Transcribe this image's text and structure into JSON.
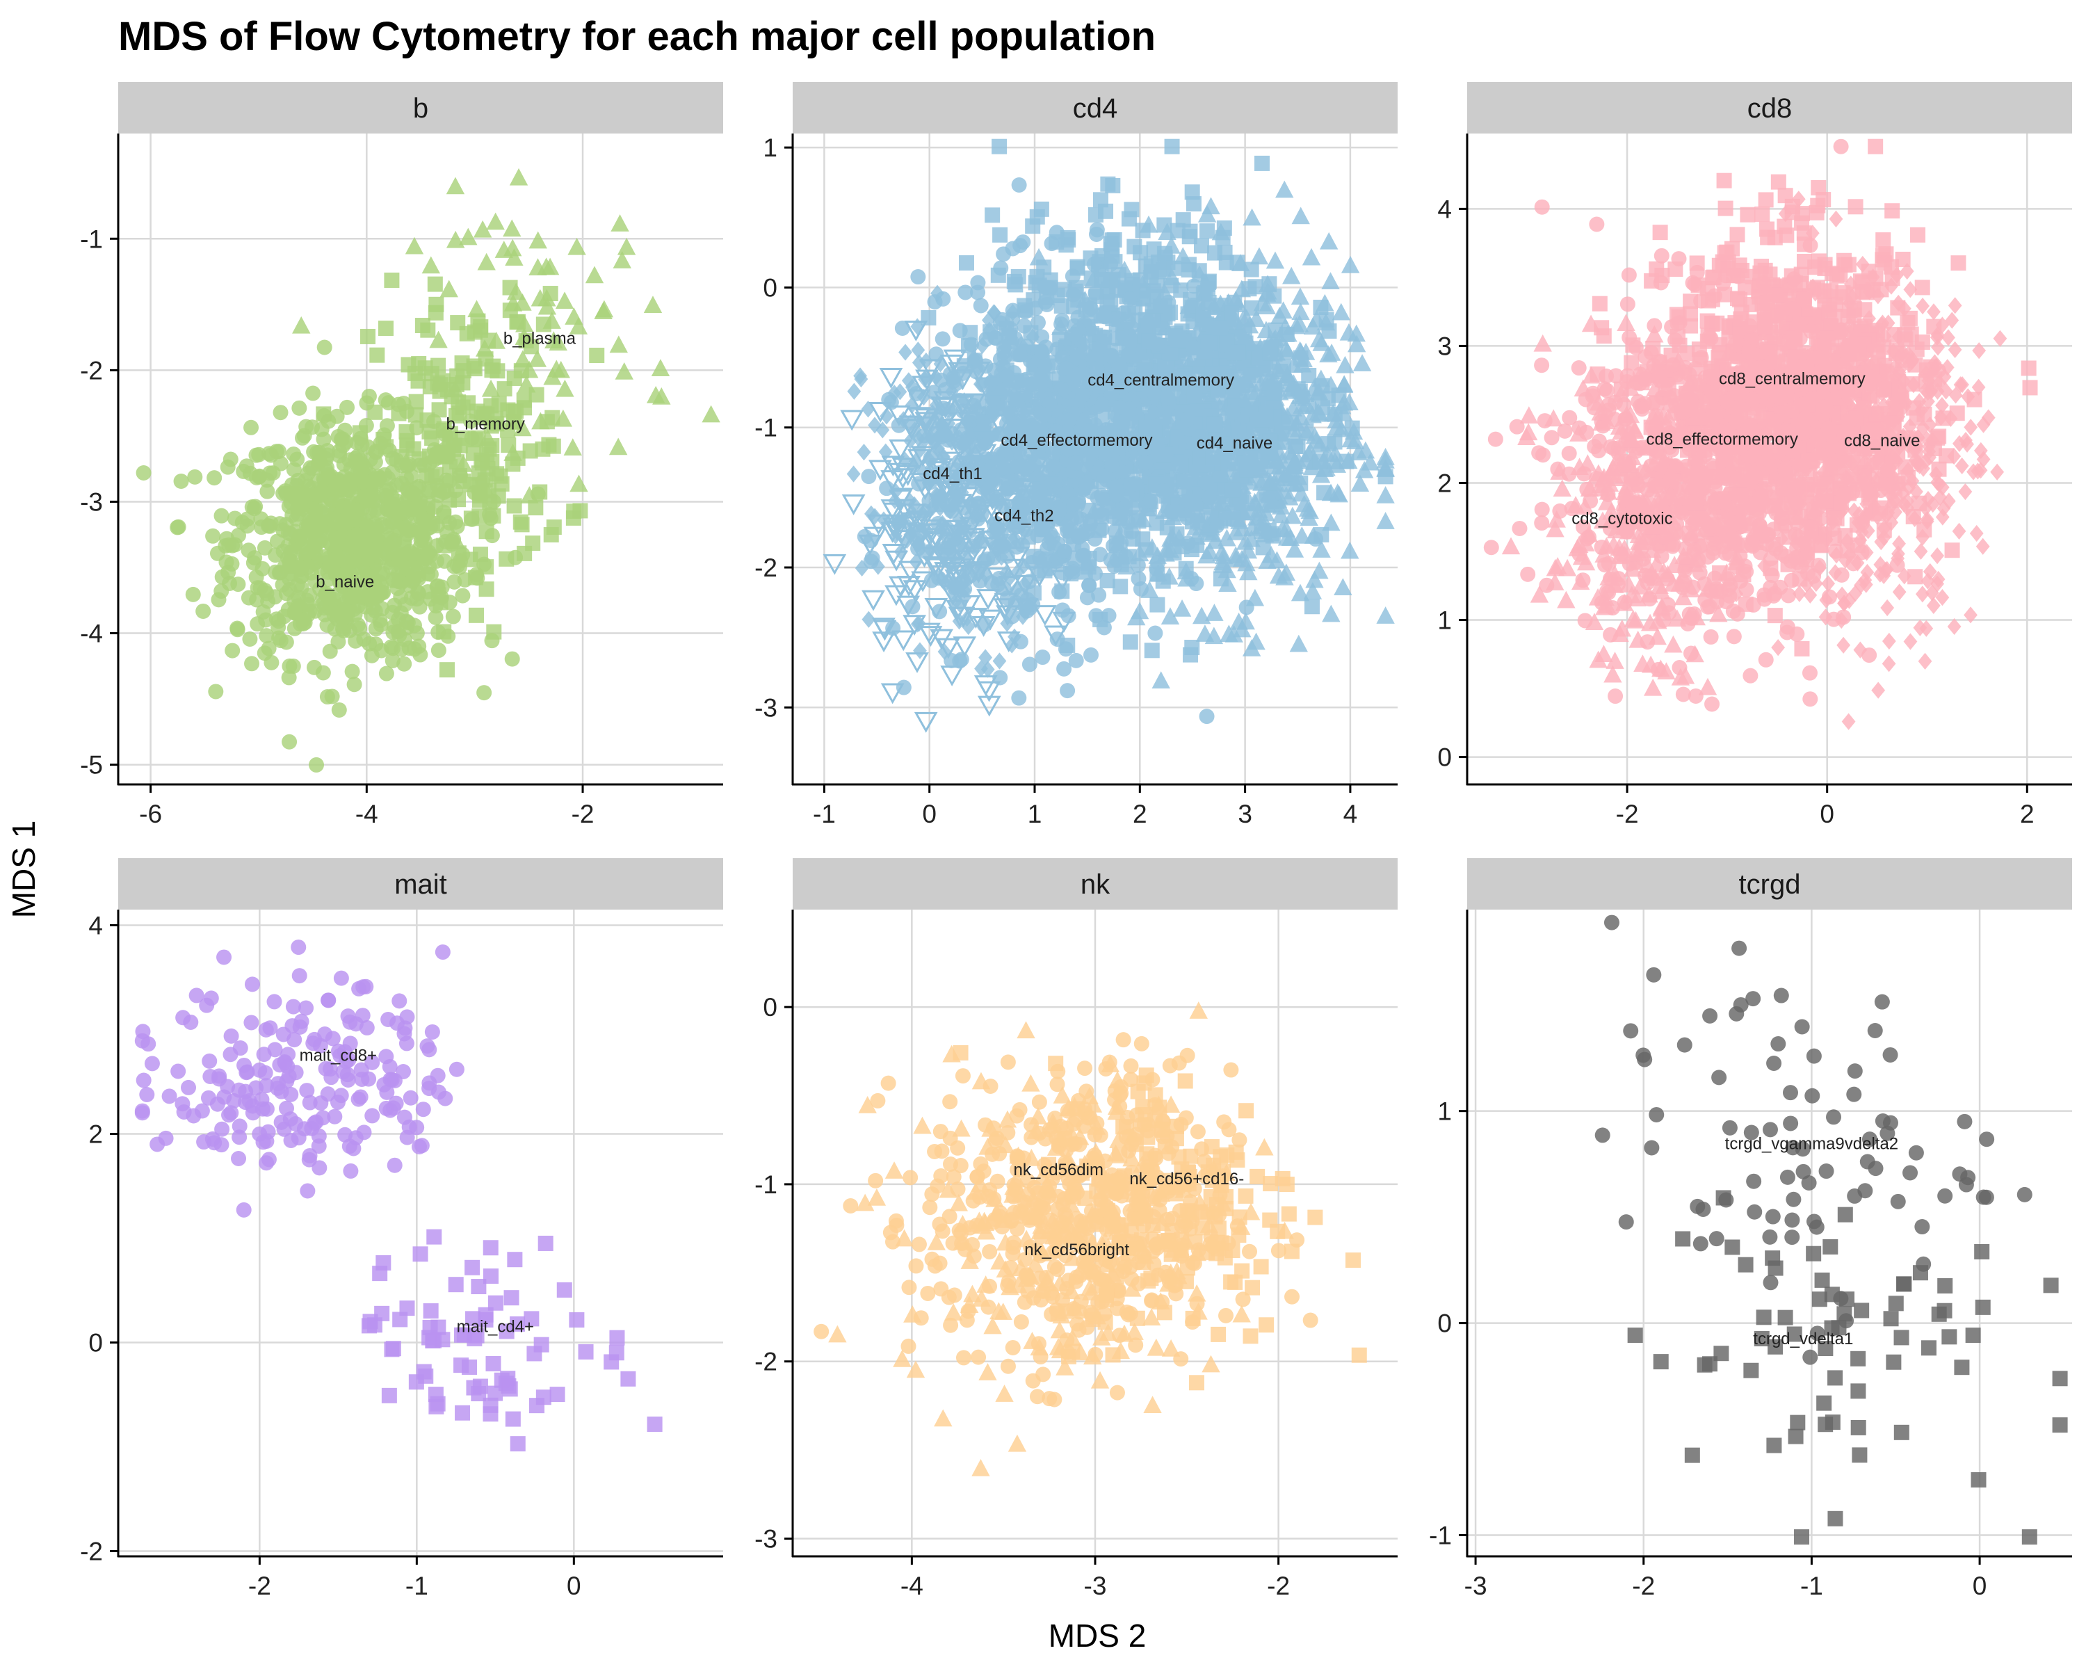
{
  "chart_data": {
    "type": "scatter",
    "title": "MDS of Flow Cytometry for each major cell population",
    "xlabel": "MDS 2",
    "ylabel": "MDS 1",
    "grid": true,
    "legend": "none",
    "facets": [
      {
        "name": "b",
        "color": "#a9d27a",
        "xlim": [
          -6.3,
          -0.7
        ],
        "ylim": [
          -5.15,
          -0.2
        ],
        "xticks": [
          -6,
          -4,
          -2
        ],
        "yticks": [
          -5,
          -4,
          -3,
          -2,
          -1
        ],
        "clusters": [
          {
            "label": "b_naive",
            "shape": "circle",
            "n": 850,
            "center": [
              -4.15,
              -3.3
            ],
            "spread": [
              0.55,
              0.45
            ],
            "label_at": [
              -4.2,
              -3.65
            ]
          },
          {
            "label": "b_memory",
            "shape": "square",
            "n": 190,
            "center": [
              -3.05,
              -2.55
            ],
            "spread": [
              0.45,
              0.55
            ],
            "label_at": [
              -2.9,
              -2.45
            ]
          },
          {
            "label": "b_plasma",
            "shape": "triangle",
            "n": 75,
            "center": [
              -2.35,
              -1.75
            ],
            "spread": [
              0.6,
              0.55
            ],
            "label_at": [
              -2.4,
              -1.8
            ]
          }
        ]
      },
      {
        "name": "cd4",
        "color": "#8fc0dd",
        "xlim": [
          -1.3,
          4.45
        ],
        "ylim": [
          -3.55,
          1.1
        ],
        "xticks": [
          -1,
          0,
          1,
          2,
          3,
          4
        ],
        "yticks": [
          -3,
          -2,
          -1,
          0,
          1
        ],
        "clusters": [
          {
            "label": "cd4_naive",
            "shape": "triangle",
            "n": 700,
            "center": [
              2.9,
              -1.05
            ],
            "spread": [
              0.55,
              0.6
            ],
            "label_at": [
              2.9,
              -1.15
            ]
          },
          {
            "label": "cd4_centralmemory",
            "shape": "square",
            "n": 900,
            "center": [
              2.05,
              -0.75
            ],
            "spread": [
              0.7,
              0.6
            ],
            "label_at": [
              2.2,
              -0.7
            ]
          },
          {
            "label": "cd4_effectormemory",
            "shape": "circle",
            "n": 700,
            "center": [
              1.1,
              -1.25
            ],
            "spread": [
              0.6,
              0.6
            ],
            "label_at": [
              1.4,
              -1.13
            ]
          },
          {
            "label": "cd4_th1",
            "shape": "diamond",
            "n": 250,
            "center": [
              0.3,
              -1.4
            ],
            "spread": [
              0.45,
              0.55
            ],
            "label_at": [
              0.22,
              -1.37
            ]
          },
          {
            "label": "cd4_th2",
            "shape": "triangle-down-open",
            "n": 200,
            "center": [
              0.25,
              -1.6
            ],
            "spread": [
              0.45,
              0.55
            ],
            "label_at": [
              0.9,
              -1.67
            ]
          }
        ]
      },
      {
        "name": "cd8",
        "color": "#fdb1bc",
        "xlim": [
          -3.6,
          2.45
        ],
        "ylim": [
          -0.2,
          4.55
        ],
        "xticks": [
          -2,
          0,
          2
        ],
        "yticks": [
          0,
          1,
          2,
          3,
          4
        ],
        "clusters": [
          {
            "label": "cd8_naive",
            "shape": "diamond",
            "n": 500,
            "center": [
              0.4,
              2.25
            ],
            "spread": [
              0.55,
              0.6
            ],
            "label_at": [
              0.55,
              2.27
            ]
          },
          {
            "label": "cd8_centralmemory",
            "shape": "square",
            "n": 900,
            "center": [
              -0.3,
              2.65
            ],
            "spread": [
              0.65,
              0.55
            ],
            "label_at": [
              -0.35,
              2.72
            ]
          },
          {
            "label": "cd8_effectormemory",
            "shape": "circle",
            "n": 700,
            "center": [
              -1.2,
              2.1
            ],
            "spread": [
              0.7,
              0.6
            ],
            "label_at": [
              -1.05,
              2.28
            ]
          },
          {
            "label": "cd8_cytotoxic",
            "shape": "triangle",
            "n": 250,
            "center": [
              -1.9,
              1.75
            ],
            "spread": [
              0.45,
              0.55
            ],
            "label_at": [
              -2.05,
              1.7
            ]
          }
        ]
      },
      {
        "name": "mait",
        "color": "#b993f0",
        "xlim": [
          -2.9,
          0.95
        ],
        "ylim": [
          -2.05,
          4.15
        ],
        "xticks": [
          -2,
          -1,
          0
        ],
        "yticks": [
          -2,
          0,
          2,
          4
        ],
        "clusters": [
          {
            "label": "mait_cd8+",
            "shape": "circle",
            "n": 200,
            "center": [
              -1.7,
              2.55
            ],
            "spread": [
              0.45,
              0.5
            ],
            "label_at": [
              -1.5,
              2.7
            ]
          },
          {
            "label": "mait_cd4+",
            "shape": "square",
            "n": 75,
            "center": [
              -0.55,
              0.0
            ],
            "spread": [
              0.45,
              0.45
            ],
            "label_at": [
              -0.5,
              0.1
            ]
          }
        ]
      },
      {
        "name": "nk",
        "color": "#fed093",
        "xlim": [
          -4.65,
          -1.35
        ],
        "ylim": [
          -3.1,
          0.55
        ],
        "xticks": [
          -4,
          -3,
          -2
        ],
        "yticks": [
          -3,
          -2,
          -1,
          0
        ],
        "clusters": [
          {
            "label": "nk_cd56dim",
            "shape": "circle",
            "n": 450,
            "center": [
              -3.1,
              -1.2
            ],
            "spread": [
              0.42,
              0.42
            ],
            "label_at": [
              -3.2,
              -0.95
            ]
          },
          {
            "label": "nk_cd56+cd16-",
            "shape": "square",
            "n": 150,
            "center": [
              -2.55,
              -1.1
            ],
            "spread": [
              0.35,
              0.4
            ],
            "label_at": [
              -2.5,
              -1.0
            ]
          },
          {
            "label": "nk_cd56bright",
            "shape": "triangle",
            "n": 200,
            "center": [
              -3.15,
              -1.25
            ],
            "spread": [
              0.45,
              0.45
            ],
            "label_at": [
              -3.1,
              -1.4
            ]
          }
        ]
      },
      {
        "name": "tcrgd",
        "color": "#666666",
        "xlim": [
          -3.05,
          0.55
        ],
        "ylim": [
          -1.1,
          1.95
        ],
        "xticks": [
          -3,
          -2,
          -1,
          0
        ],
        "yticks": [
          -1,
          0,
          1
        ],
        "clusters": [
          {
            "label": "tcrgd_vgamma9vdelta2",
            "shape": "circle",
            "n": 80,
            "center": [
              -1.1,
              0.85
            ],
            "spread": [
              0.55,
              0.4
            ],
            "label_at": [
              -1.0,
              0.82
            ]
          },
          {
            "label": "tcrgd_vdelta1",
            "shape": "square",
            "n": 65,
            "center": [
              -0.95,
              -0.1
            ],
            "spread": [
              0.55,
              0.38
            ],
            "label_at": [
              -1.05,
              -0.1
            ]
          }
        ]
      }
    ]
  }
}
